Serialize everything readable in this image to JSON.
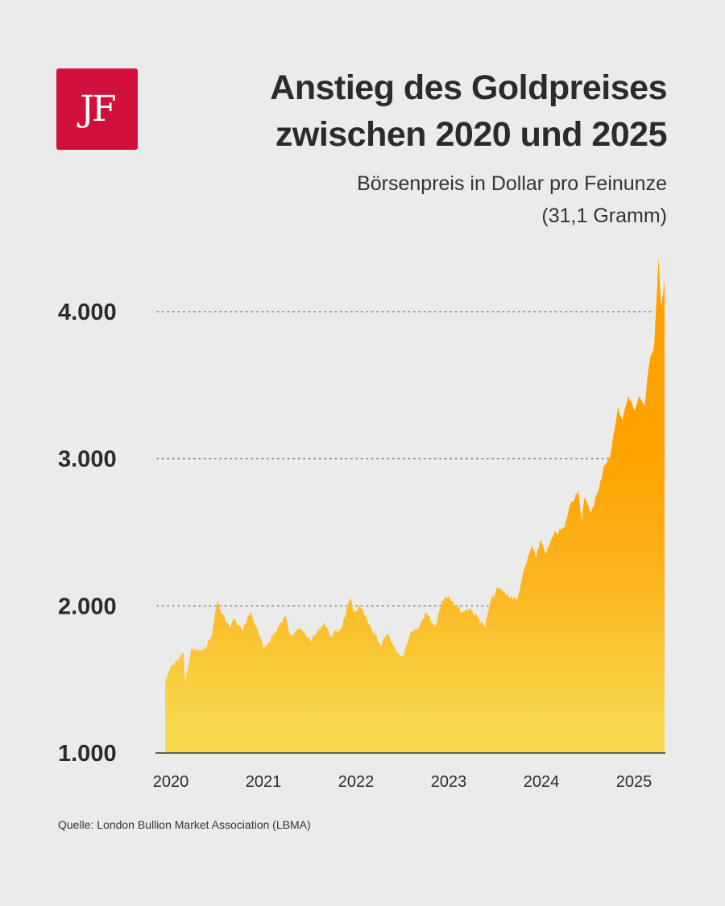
{
  "logo": {
    "text": "JF",
    "color": "#d1103b"
  },
  "title": [
    "Anstieg des Goldpreises",
    "zwischen 2020 und 2025"
  ],
  "subtitle": [
    "Börsenpreis in Dollar pro Feinunze",
    "(31,1 Gramm)"
  ],
  "source": "Quelle: London Bullion Market Association (LBMA)",
  "chart_data": {
    "type": "area",
    "title": "Anstieg des Goldpreises zwischen 2020 und 2025",
    "subtitle": "Börsenpreis in Dollar pro Feinunze (31,1 Gramm)",
    "xlabel": "",
    "ylabel": "",
    "ylim": [
      1000,
      4400
    ],
    "xlim": [
      2020.0,
      2025.79
    ],
    "y_ticks": [
      {
        "value": 1000,
        "label": "1.000"
      },
      {
        "value": 2000,
        "label": "2.000"
      },
      {
        "value": 3000,
        "label": "3.000"
      },
      {
        "value": 4000,
        "label": "4.000"
      }
    ],
    "x_ticks": [
      "2020",
      "2021",
      "2022",
      "2023",
      "2024",
      "2025"
    ],
    "grid": "horizontal dotted",
    "colors": {
      "top": "#ffa200",
      "bottom": "#f7d84c"
    },
    "x": [
      2020.0,
      2020.05,
      2020.16,
      2020.21,
      2020.23,
      2020.3,
      2020.44,
      2020.53,
      2020.56,
      2020.61,
      2020.64,
      2020.75,
      2020.79,
      2020.89,
      2020.99,
      2021.05,
      2021.14,
      2021.2,
      2021.4,
      2021.45,
      2021.54,
      2021.7,
      2021.84,
      2021.92,
      2022.04,
      2022.15,
      2022.18,
      2022.26,
      2022.36,
      2022.5,
      2022.57,
      2022.71,
      2022.76,
      2022.83,
      2022.94,
      2023.02,
      2023.13,
      2023.21,
      2023.29,
      2023.44,
      2023.53,
      2023.71,
      2023.77,
      2023.86,
      2023.94,
      2024.08,
      2024.14,
      2024.25,
      2024.3,
      2024.35,
      2024.42,
      2024.5,
      2024.63,
      2024.69,
      2024.79,
      2024.83,
      2024.86,
      2024.93,
      2025.03,
      2025.09,
      2025.16,
      2025.21,
      2025.25,
      2025.3,
      2025.37,
      2025.44,
      2025.49,
      2025.56,
      2025.61,
      2025.67,
      2025.72,
      2025.75,
      2025.79
    ],
    "y": [
      1482,
      1564,
      1646,
      1684,
      1476,
      1700,
      1695,
      1783,
      1876,
      2040,
      1969,
      1848,
      1914,
      1832,
      1958,
      1865,
      1711,
      1755,
      1930,
      1805,
      1848,
      1766,
      1887,
      1794,
      1848,
      2051,
      1958,
      1996,
      1876,
      1722,
      1810,
      1673,
      1646,
      1794,
      1848,
      1958,
      1859,
      2040,
      2067,
      1958,
      1985,
      1859,
      2023,
      2122,
      2084,
      2040,
      2193,
      2407,
      2324,
      2450,
      2357,
      2478,
      2532,
      2680,
      2790,
      2576,
      2735,
      2631,
      2795,
      2959,
      3014,
      3200,
      3353,
      3260,
      3425,
      3326,
      3425,
      3364,
      3638,
      3780,
      4366,
      4037,
      4213
    ]
  }
}
